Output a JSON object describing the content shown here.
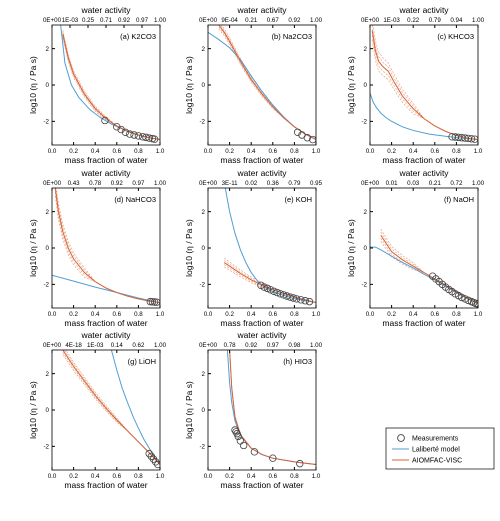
{
  "colors": {
    "measurement_edge": "#444444",
    "laliberte": "#4f9fd6",
    "aiomfac": "#d4633a",
    "aiomfac_band": "#e8a383",
    "frame": "#000000"
  },
  "legend": {
    "position": "bottom-right",
    "items": [
      {
        "label": "Measurements",
        "symbol": "open-circle"
      },
      {
        "label": "Laliberté model",
        "symbol": "line",
        "color": "#4f9fd6"
      },
      {
        "label": "AIOMFAC-VISC",
        "symbol": "line",
        "color": "#d4633a"
      }
    ]
  },
  "chart_data": [
    {
      "type": "line",
      "panel_label": "(a) K2CO3",
      "xlabel": "mass fraction of water",
      "ylabel": "log10 (η / Pa s)",
      "top_axis_label": "water activity",
      "top_ticks": [
        "0E+00",
        "1E-03",
        "0.25",
        "0.71",
        "0.92",
        "0.97",
        "1.00"
      ],
      "xticks": [
        "0.0",
        "0.2",
        "0.4",
        "0.6",
        "0.8",
        "1.0"
      ],
      "yticks": [
        "-2",
        "0",
        "2"
      ],
      "xlim": [
        0,
        1
      ],
      "ylim": [
        -3.3,
        3.3
      ],
      "measurements": {
        "x": [
          0.49,
          0.6,
          0.64,
          0.68,
          0.72,
          0.76,
          0.8,
          0.84,
          0.87,
          0.9,
          0.93,
          0.95
        ],
        "y": [
          -1.95,
          -2.3,
          -2.45,
          -2.6,
          -2.7,
          -2.75,
          -2.8,
          -2.85,
          -2.88,
          -2.92,
          -2.95,
          -2.98
        ]
      },
      "laliberte": {
        "x": [
          0.08,
          0.12,
          0.18,
          0.25,
          0.35,
          0.45,
          0.55,
          0.7,
          0.85,
          1.0
        ],
        "y": [
          3.3,
          1.2,
          0.0,
          -0.7,
          -1.35,
          -1.8,
          -2.15,
          -2.55,
          -2.85,
          -3.0
        ]
      },
      "aiomfac": {
        "x": [
          0.1,
          0.15,
          0.2,
          0.3,
          0.4,
          0.5,
          0.6,
          0.7,
          0.8,
          0.9,
          1.0
        ],
        "y": [
          2.8,
          1.5,
          0.6,
          -0.5,
          -1.3,
          -1.85,
          -2.25,
          -2.55,
          -2.75,
          -2.9,
          -3.0
        ]
      },
      "band_width": 0.12,
      "band_xmax": 0.55
    },
    {
      "type": "line",
      "panel_label": "(b) Na2CO3",
      "xlabel": "mass fraction of water",
      "ylabel": "log10 (η / Pa s)",
      "top_axis_label": "water activity",
      "top_ticks": [
        "0E+00",
        "9E-04",
        "0.21",
        "0.67",
        "0.92",
        "1.00"
      ],
      "xticks": [
        "0.0",
        "0.2",
        "0.4",
        "0.6",
        "0.8",
        "1.0"
      ],
      "yticks": [
        "-2",
        "0",
        "2"
      ],
      "xlim": [
        0,
        1
      ],
      "ylim": [
        -3.3,
        3.3
      ],
      "measurements": {
        "x": [
          0.83,
          0.87,
          0.92,
          0.97
        ],
        "y": [
          -2.6,
          -2.75,
          -2.9,
          -3.0
        ]
      },
      "laliberte": {
        "x": [
          0.0,
          0.1,
          0.2,
          0.3,
          0.4,
          0.5,
          0.6,
          0.7,
          0.8,
          0.9,
          1.0
        ],
        "y": [
          2.9,
          2.5,
          2.05,
          1.4,
          0.5,
          -0.35,
          -1.1,
          -1.75,
          -2.3,
          -2.7,
          -3.0
        ]
      },
      "aiomfac": {
        "x": [
          0.1,
          0.15,
          0.2,
          0.3,
          0.4,
          0.5,
          0.6,
          0.7,
          0.8,
          0.9,
          1.0
        ],
        "y": [
          3.3,
          2.9,
          2.4,
          1.3,
          0.3,
          -0.5,
          -1.2,
          -1.8,
          -2.3,
          -2.7,
          -3.0
        ]
      },
      "band_width": 0.12,
      "band_xmax": 0.6
    },
    {
      "type": "line",
      "panel_label": "(c) KHCO3",
      "xlabel": "mass fraction of water",
      "ylabel": "log10 (η / Pa s)",
      "top_axis_label": "water activity",
      "top_ticks": [
        "0E+00",
        "1E-03",
        "0.22",
        "0.79",
        "0.94",
        "1.00"
      ],
      "xticks": [
        "0.0",
        "0.2",
        "0.4",
        "0.6",
        "0.8",
        "1.0"
      ],
      "yticks": [
        "-2",
        "0",
        "2"
      ],
      "xlim": [
        0,
        1
      ],
      "ylim": [
        -3.3,
        3.3
      ],
      "measurements": {
        "x": [
          0.76,
          0.79,
          0.82,
          0.85,
          0.88,
          0.91,
          0.94,
          0.97
        ],
        "y": [
          -2.85,
          -2.86,
          -2.88,
          -2.9,
          -2.92,
          -2.94,
          -2.96,
          -2.98
        ]
      },
      "laliberte": {
        "x": [
          0.0,
          0.03,
          0.06,
          0.1,
          0.15,
          0.2,
          0.3,
          0.4,
          0.55,
          0.7,
          0.85,
          1.0
        ],
        "y": [
          -0.45,
          -0.95,
          -1.25,
          -1.55,
          -1.8,
          -2.0,
          -2.3,
          -2.5,
          -2.7,
          -2.82,
          -2.92,
          -3.0
        ]
      },
      "aiomfac": {
        "x": [
          0.02,
          0.05,
          0.08,
          0.12,
          0.17,
          0.22,
          0.3,
          0.4,
          0.5,
          0.6,
          0.7,
          0.8,
          0.9,
          1.0
        ],
        "y": [
          3.0,
          1.9,
          1.3,
          1.0,
          0.75,
          0.2,
          -0.6,
          -1.3,
          -1.85,
          -2.25,
          -2.55,
          -2.78,
          -2.92,
          -3.0
        ]
      },
      "band_width": 0.3,
      "band_xmax": 0.45
    },
    {
      "type": "line",
      "panel_label": "(d) NaHCO3",
      "xlabel": "mass fraction of water",
      "ylabel": "log10 (η / Pa s)",
      "top_axis_label": "water activity",
      "top_ticks": [
        "0E+00",
        "0.43",
        "0.78",
        "0.92",
        "0.97",
        "1.00"
      ],
      "xticks": [
        "0.0",
        "0.2",
        "0.4",
        "0.6",
        "0.8",
        "1.0"
      ],
      "yticks": [
        "-2",
        "0",
        "2"
      ],
      "xlim": [
        0,
        1
      ],
      "ylim": [
        -3.3,
        3.3
      ],
      "measurements": {
        "x": [
          0.91,
          0.93,
          0.95,
          0.97
        ],
        "y": [
          -2.95,
          -2.96,
          -2.97,
          -2.98
        ]
      },
      "laliberte": {
        "x": [
          0.0,
          0.2,
          0.4,
          0.6,
          0.8,
          1.0
        ],
        "y": [
          -1.5,
          -1.82,
          -2.15,
          -2.45,
          -2.75,
          -3.02
        ]
      },
      "aiomfac": {
        "x": [
          0.03,
          0.06,
          0.1,
          0.15,
          0.2,
          0.3,
          0.4,
          0.5,
          0.6,
          0.7,
          0.8,
          0.9,
          1.0
        ],
        "y": [
          3.3,
          2.0,
          0.9,
          0.0,
          -0.6,
          -1.35,
          -1.85,
          -2.2,
          -2.45,
          -2.65,
          -2.8,
          -2.92,
          -3.0
        ]
      },
      "band_width": 0.25,
      "band_xmax": 0.35
    },
    {
      "type": "line",
      "panel_label": "(e) KOH",
      "xlabel": "mass fraction of water",
      "ylabel": "log10 (η / Pa s)",
      "top_axis_label": "water activity",
      "top_ticks": [
        "0E+00",
        "3E-11",
        "0.02",
        "0.36",
        "0.79",
        "0.95"
      ],
      "xticks": [
        "0.0",
        "0.2",
        "0.4",
        "0.6",
        "0.8",
        "1.0"
      ],
      "yticks": [
        "-2",
        "0",
        "2"
      ],
      "xlim": [
        0,
        1
      ],
      "ylim": [
        -3.3,
        3.3
      ],
      "measurements": {
        "x": [
          0.49,
          0.52,
          0.55,
          0.58,
          0.61,
          0.64,
          0.67,
          0.7,
          0.73,
          0.76,
          0.79,
          0.82,
          0.86,
          0.9,
          0.94
        ],
        "y": [
          -2.05,
          -2.15,
          -2.22,
          -2.3,
          -2.38,
          -2.45,
          -2.52,
          -2.58,
          -2.64,
          -2.7,
          -2.75,
          -2.8,
          -2.85,
          -2.9,
          -2.95
        ]
      },
      "laliberte": {
        "x": [
          0.16,
          0.2,
          0.25,
          0.3,
          0.35,
          0.4,
          0.45,
          0.5,
          0.6,
          0.7,
          0.8,
          0.9,
          1.0
        ],
        "y": [
          3.3,
          2.0,
          0.8,
          -0.1,
          -0.8,
          -1.35,
          -1.75,
          -2.05,
          -2.4,
          -2.6,
          -2.78,
          -2.9,
          -3.0
        ]
      },
      "aiomfac": {
        "x": [
          0.15,
          0.2,
          0.3,
          0.4,
          0.5,
          0.6,
          0.7,
          0.8,
          0.9,
          1.0
        ],
        "y": [
          -0.8,
          -1.0,
          -1.4,
          -1.75,
          -2.05,
          -2.3,
          -2.5,
          -2.7,
          -2.85,
          -3.0
        ]
      },
      "band_width": 0.15,
      "band_xmax": 0.5
    },
    {
      "type": "line",
      "panel_label": "(f) NaOH",
      "xlabel": "mass fraction of water",
      "ylabel": "log10 (η / Pa s)",
      "top_axis_label": "water activity",
      "top_ticks": [
        "0E+00",
        "0.01",
        "0.03",
        "0.21",
        "0.72",
        "1.00"
      ],
      "xticks": [
        "0.0",
        "0.2",
        "0.4",
        "0.6",
        "0.8",
        "1.0"
      ],
      "yticks": [
        "-2",
        "0",
        "2"
      ],
      "xlim": [
        0,
        1
      ],
      "ylim": [
        -3.3,
        3.3
      ],
      "measurements": {
        "x": [
          0.58,
          0.61,
          0.64,
          0.67,
          0.7,
          0.73,
          0.76,
          0.79,
          0.82,
          0.85,
          0.88,
          0.91,
          0.94,
          0.96,
          0.98,
          1.0
        ],
        "y": [
          -1.55,
          -1.7,
          -1.85,
          -2.0,
          -2.15,
          -2.28,
          -2.4,
          -2.52,
          -2.62,
          -2.72,
          -2.8,
          -2.88,
          -2.95,
          -3.0,
          -3.05,
          -3.08
        ]
      },
      "laliberte": {
        "x": [
          0.0,
          0.05,
          0.1,
          0.2,
          0.3,
          0.4,
          0.5,
          0.6,
          0.7,
          0.8,
          0.9,
          1.0
        ],
        "y": [
          0.05,
          0.05,
          -0.1,
          -0.45,
          -0.8,
          -1.1,
          -1.45,
          -1.75,
          -2.1,
          -2.45,
          -2.78,
          -3.05
        ]
      },
      "aiomfac": {
        "x": [
          0.1,
          0.2,
          0.3,
          0.4,
          0.5,
          0.6,
          0.7,
          0.8,
          0.9,
          1.0
        ],
        "y": [
          0.7,
          -0.2,
          -0.65,
          -1.0,
          -1.35,
          -1.7,
          -2.05,
          -2.4,
          -2.75,
          -3.05
        ]
      },
      "band_width": 0.2,
      "band_xmax": 0.45
    },
    {
      "type": "line",
      "panel_label": "(g) LiOH",
      "xlabel": "mass fraction of water",
      "ylabel": "log10 (η / Pa s)",
      "top_axis_label": "water activity",
      "top_ticks": [
        "0E+00",
        "4E-18",
        "1E-03",
        "0.14",
        "0.62",
        "1.00"
      ],
      "xticks": [
        "0.0",
        "0.2",
        "0.4",
        "0.6",
        "0.8",
        "1.0"
      ],
      "yticks": [
        "-2",
        "0",
        "2"
      ],
      "xlim": [
        0,
        1
      ],
      "ylim": [
        -3.3,
        3.3
      ],
      "measurements": {
        "x": [
          0.9,
          0.92,
          0.94,
          0.96,
          0.98
        ],
        "y": [
          -2.4,
          -2.55,
          -2.7,
          -2.85,
          -3.0
        ]
      },
      "laliberte": {
        "x": [
          0.55,
          0.6,
          0.65,
          0.7,
          0.75,
          0.8,
          0.85,
          0.9,
          0.95,
          1.0
        ],
        "y": [
          3.3,
          2.2,
          1.2,
          0.4,
          -0.35,
          -1.0,
          -1.6,
          -2.1,
          -2.6,
          -3.0
        ]
      },
      "aiomfac": {
        "x": [
          0.1,
          0.2,
          0.3,
          0.4,
          0.5,
          0.6,
          0.7,
          0.8,
          0.9,
          1.0
        ],
        "y": [
          3.3,
          2.4,
          1.6,
          0.8,
          0.1,
          -0.55,
          -1.15,
          -1.75,
          -2.35,
          -3.0
        ]
      },
      "band_width": 0.15,
      "band_xmax": 0.6
    },
    {
      "type": "line",
      "panel_label": "(h) HIO3",
      "xlabel": "mass fraction of water",
      "ylabel": "log10 (η / Pa s)",
      "top_axis_label": "water activity",
      "top_ticks": [
        "0E+00",
        "0.78",
        "0.92",
        "0.97",
        "0.98",
        "1.00"
      ],
      "xticks": [
        "0.0",
        "0.2",
        "0.4",
        "0.6",
        "0.8",
        "1.0"
      ],
      "yticks": [
        "-2",
        "0",
        "2"
      ],
      "xlim": [
        0,
        1
      ],
      "ylim": [
        -3.3,
        3.3
      ],
      "measurements": {
        "x": [
          0.25,
          0.26,
          0.27,
          0.28,
          0.3,
          0.33,
          0.43,
          0.6,
          0.85
        ],
        "y": [
          -1.1,
          -1.2,
          -1.3,
          -1.45,
          -1.7,
          -1.95,
          -2.3,
          -2.65,
          -2.95
        ]
      },
      "laliberte": {
        "x": [
          0.18,
          0.2,
          0.22,
          0.25,
          0.3,
          0.4,
          0.5,
          0.6,
          0.8,
          1.0
        ],
        "y": [
          3.3,
          1.5,
          0.4,
          -0.6,
          -1.4,
          -2.1,
          -2.45,
          -2.65,
          -2.85,
          -3.0
        ]
      },
      "aiomfac": {
        "x": [
          0.2,
          0.22,
          0.25,
          0.3,
          0.4,
          0.5,
          0.6,
          0.8,
          1.0
        ],
        "y": [
          3.3,
          1.2,
          -0.4,
          -1.35,
          -2.1,
          -2.45,
          -2.65,
          -2.85,
          -3.0
        ]
      },
      "band_width": 0.1,
      "band_xmax": 0.28
    }
  ]
}
